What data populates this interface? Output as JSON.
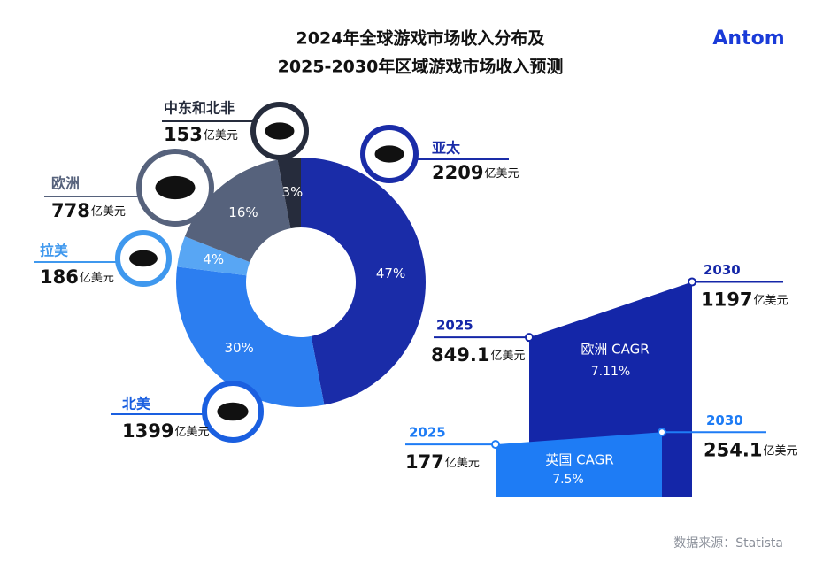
{
  "header": {
    "title_line1": "2024年全球游戏市场收入分布及",
    "title_line2": "2025-2030年区域游戏市场收入预测",
    "logo": "Antom"
  },
  "chart_data": [
    {
      "type": "pie",
      "categories": [
        "亚太",
        "北美",
        "拉美",
        "欧洲",
        "中东和北非"
      ],
      "values": [
        47,
        30,
        4,
        16,
        3
      ],
      "value_labels": [
        "47%",
        "30%",
        "4%",
        "16%",
        "3%"
      ],
      "amounts": [
        2209,
        1399,
        186,
        778,
        153
      ],
      "unit": "亿美元",
      "colors": [
        "#1a2ca8",
        "#2c7ef0",
        "#58a6f4",
        "#56627c",
        "#262c3c"
      ],
      "label_colors": [
        "#1a2ca8",
        "#1a5fe0",
        "#3f98ee",
        "#56627c",
        "#262c3c"
      ]
    },
    {
      "type": "area",
      "x": [
        "2025",
        "2030"
      ],
      "unit": "亿美元",
      "series": [
        {
          "name": "欧洲 CAGR",
          "cagr": "7.11%",
          "color": "#1426a8",
          "values": [
            849.1,
            1197
          ]
        },
        {
          "name": "英国 CAGR",
          "cagr": "7.5%",
          "color": "#1e7cf5",
          "values": [
            177,
            254.1
          ]
        }
      ]
    }
  ],
  "footer": {
    "source": "数据来源：Statista"
  }
}
